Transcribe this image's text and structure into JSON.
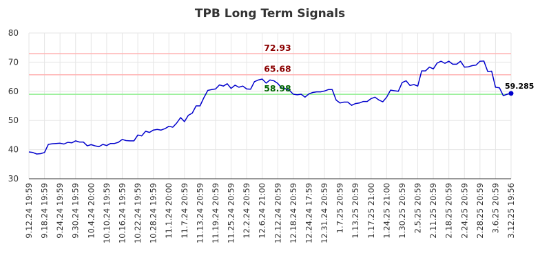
{
  "chart_data": {
    "type": "line",
    "title": "TPB Long Term Signals",
    "xlabel": "",
    "ylabel": "",
    "ylim": [
      30,
      80
    ],
    "yticks": [
      30,
      40,
      50,
      60,
      70,
      80
    ],
    "grid": true,
    "x_tick_labels": [
      "9.12.24 19:59",
      "9.18.24 19:59",
      "9.24.24 19:59",
      "9.30.24 19:59",
      "10.4.24 20:00",
      "10.10.24 19:59",
      "10.16.24 19:59",
      "10.22.24 19:59",
      "10.28.24 19:59",
      "11.1.24 20:00",
      "11.7.24 20:59",
      "11.13.24 20:59",
      "11.19.24 20:59",
      "11.25.24 20:59",
      "12.2.24 20:59",
      "12.6.24 21:00",
      "12.12.24 20:59",
      "12.18.24 20:59",
      "12.24.24 17:59",
      "12.31.24 20:59",
      "1.7.25 20:59",
      "1.13.25 20:59",
      "1.17.25 21:00",
      "1.24.25 21:00",
      "1.30.25 20:59",
      "2.5.25 20:59",
      "2.11.25 20:59",
      "2.18.25 20:59",
      "2.24.25 20:59",
      "2.28.25 20:59",
      "3.6.25 20:59",
      "3.12.25 19:56"
    ],
    "hlines": [
      {
        "value": 72.93,
        "label": "72.93",
        "line_color": "#ffb3b3",
        "label_color": "#8b0000"
      },
      {
        "value": 65.68,
        "label": "65.68",
        "line_color": "#ffb3b3",
        "label_color": "#8b0000"
      },
      {
        "value": 58.98,
        "label": "58.98",
        "line_color": "#90ee90",
        "label_color": "#006400"
      }
    ],
    "series": [
      {
        "color": "#0000cc",
        "last_label": "59.285",
        "values": [
          39.2,
          39.0,
          38.5,
          38.6,
          39.0,
          41.8,
          42.0,
          42.1,
          42.2,
          41.9,
          42.5,
          42.3,
          43.0,
          42.6,
          42.6,
          41.3,
          41.7,
          41.3,
          41.0,
          41.8,
          41.4,
          42.1,
          42.1,
          42.5,
          43.5,
          43.1,
          43.0,
          43.0,
          45.0,
          44.7,
          46.3,
          45.9,
          46.7,
          46.9,
          46.7,
          47.2,
          48.0,
          47.7,
          49.1,
          51.0,
          49.6,
          51.8,
          52.5,
          55.0,
          55.0,
          57.8,
          60.3,
          60.6,
          60.8,
          62.2,
          61.8,
          62.6,
          61.0,
          62.1,
          61.4,
          61.8,
          60.8,
          60.7,
          63.3,
          63.9,
          64.2,
          62.8,
          63.9,
          63.6,
          62.7,
          61.1,
          60.9,
          60.3,
          59.0,
          58.8,
          59.0,
          58.0,
          59.1,
          59.6,
          59.8,
          59.8,
          60.1,
          60.6,
          60.6,
          57.0,
          56.0,
          56.3,
          56.3,
          55.2,
          55.8,
          56.0,
          56.5,
          56.5,
          57.5,
          58.0,
          57.0,
          56.4,
          58.0,
          60.4,
          60.2,
          60.0,
          63.0,
          63.6,
          62.0,
          62.3,
          61.8,
          67.0,
          67.0,
          68.3,
          67.7,
          69.7,
          70.3,
          69.6,
          70.3,
          69.3,
          69.3,
          70.3,
          68.3,
          68.4,
          68.8,
          69.0,
          70.3,
          70.4,
          66.8,
          66.9,
          61.4,
          61.2,
          58.5,
          59.0,
          59.285
        ]
      }
    ]
  }
}
